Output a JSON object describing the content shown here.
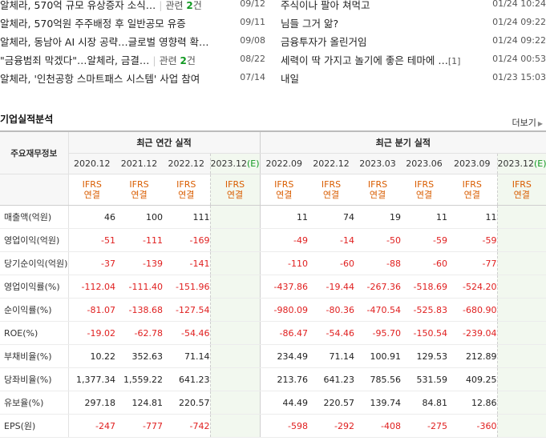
{
  "news_left": [
    {
      "title": "알체라, 570억 규모 유상증자 소식…",
      "related": "관련 ",
      "related_count": "2",
      "related_suffix": "건",
      "date": "09/12"
    },
    {
      "title": "알체라, 570억원 주주배정 후 일반공모 유증",
      "date": "09/11"
    },
    {
      "title": "알체라, 동남아 AI 시장 공략…글로벌 영향력 확…",
      "date": "09/08"
    },
    {
      "title": "\"금융범죄 막겠다\"…알체라, 금결…",
      "related": "관련 ",
      "related_count": "2",
      "related_suffix": "건",
      "date": "08/22"
    },
    {
      "title": "알체라, '인천공항 스마트패스 시스템' 사업 참여",
      "date": "07/14"
    }
  ],
  "news_right": [
    {
      "title": "주식이나 팔아 쳐먹고",
      "count": "",
      "date": "01/24 10:24"
    },
    {
      "title": "님들 그거 앎?",
      "count": "",
      "date": "01/24 09:22"
    },
    {
      "title": "금융투자가 올린거임",
      "count": "",
      "date": "01/24 09:22"
    },
    {
      "title": "세력이 딱 가지고 놀기에 좋은 테마에 …",
      "count": "[1]",
      "date": "01/24 00:53"
    },
    {
      "title": "내일",
      "count": "",
      "date": "01/23 15:03"
    }
  ],
  "section": {
    "title": "기업실적분석",
    "more": "더보기"
  },
  "table": {
    "row_header": "주요재무정보",
    "group_annual": "최근 연간 실적",
    "group_quarter": "최근 분기 실적",
    "periods": [
      "2020.12",
      "2021.12",
      "2022.12",
      "2023.12",
      "2022.09",
      "2022.12",
      "2023.03",
      "2023.06",
      "2023.09",
      "2023.12"
    ],
    "estimate_mark": "(E)",
    "basis_top": "IFRS",
    "basis_bottom": "연결",
    "rows": [
      {
        "label": "매출액(억원)",
        "values": [
          "46",
          "100",
          "111",
          "",
          "11",
          "74",
          "19",
          "11",
          "11",
          ""
        ]
      },
      {
        "label": "영업이익(억원)",
        "values": [
          "-51",
          "-111",
          "-169",
          "",
          "-49",
          "-14",
          "-50",
          "-59",
          "-59",
          ""
        ]
      },
      {
        "label": "당기순이익(억원)",
        "values": [
          "-37",
          "-139",
          "-141",
          "",
          "-110",
          "-60",
          "-88",
          "-60",
          "-77",
          ""
        ]
      },
      {
        "label": "영업이익률(%)",
        "values": [
          "-112.04",
          "-111.40",
          "-151.96",
          "",
          "-437.86",
          "-19.44",
          "-267.36",
          "-518.69",
          "-524.20",
          ""
        ]
      },
      {
        "label": "순이익률(%)",
        "values": [
          "-81.07",
          "-138.68",
          "-127.54",
          "",
          "-980.09",
          "-80.36",
          "-470.54",
          "-525.83",
          "-680.90",
          ""
        ]
      },
      {
        "label": "ROE(%)",
        "values": [
          "-19.02",
          "-62.78",
          "-54.46",
          "",
          "-86.47",
          "-54.46",
          "-95.70",
          "-150.54",
          "-239.04",
          ""
        ]
      },
      {
        "label": "부채비율(%)",
        "values": [
          "10.22",
          "352.63",
          "71.14",
          "",
          "234.49",
          "71.14",
          "100.91",
          "129.53",
          "212.89",
          ""
        ]
      },
      {
        "label": "당좌비율(%)",
        "values": [
          "1,377.34",
          "1,559.22",
          "641.23",
          "",
          "213.76",
          "641.23",
          "785.56",
          "531.59",
          "409.25",
          ""
        ]
      },
      {
        "label": "유보율(%)",
        "values": [
          "297.18",
          "124.81",
          "220.57",
          "",
          "44.49",
          "220.57",
          "139.74",
          "84.81",
          "12.86",
          ""
        ]
      },
      {
        "label": "EPS(원)",
        "values": [
          "-247",
          "-777",
          "-742",
          "",
          "-598",
          "-292",
          "-408",
          "-275",
          "-360",
          ""
        ]
      }
    ]
  },
  "colors": {
    "negative": "#e02020",
    "ifrs": "#d95d00",
    "related_count": "#119922",
    "estimate_shade": "#f2f8ef"
  }
}
